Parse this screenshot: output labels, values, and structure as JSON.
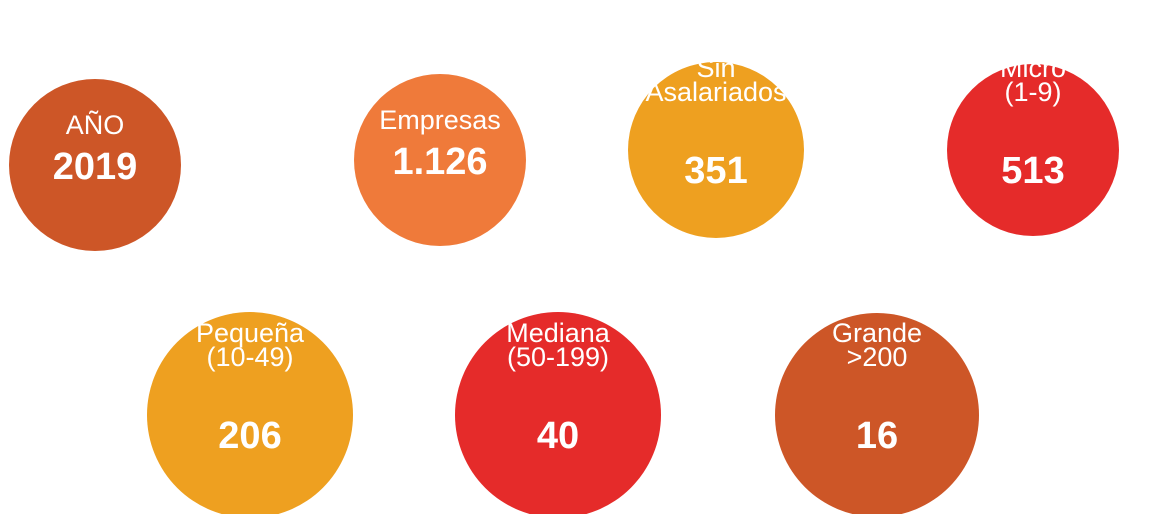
{
  "circles": [
    {
      "lines": [
        "AÑO"
      ],
      "value": "2019",
      "color": "#cd5627"
    },
    {
      "lines": [
        "Empresas"
      ],
      "value": "1.126",
      "color": "#ef7a3a"
    },
    {
      "lines": [
        "Sin",
        "Asalariados"
      ],
      "value": "351",
      "color": "#eea020"
    },
    {
      "lines": [
        "Micro",
        "(1-9)"
      ],
      "value": "513",
      "color": "#e52b2a"
    },
    {
      "lines": [
        "Pequeña",
        "(10-49)"
      ],
      "value": "206",
      "color": "#eea020"
    },
    {
      "lines": [
        "Mediana",
        "(50-199)"
      ],
      "value": "40",
      "color": "#e52b2a"
    },
    {
      "lines": [
        "Grande",
        ">200"
      ],
      "value": "16",
      "color": "#cd5627"
    }
  ]
}
